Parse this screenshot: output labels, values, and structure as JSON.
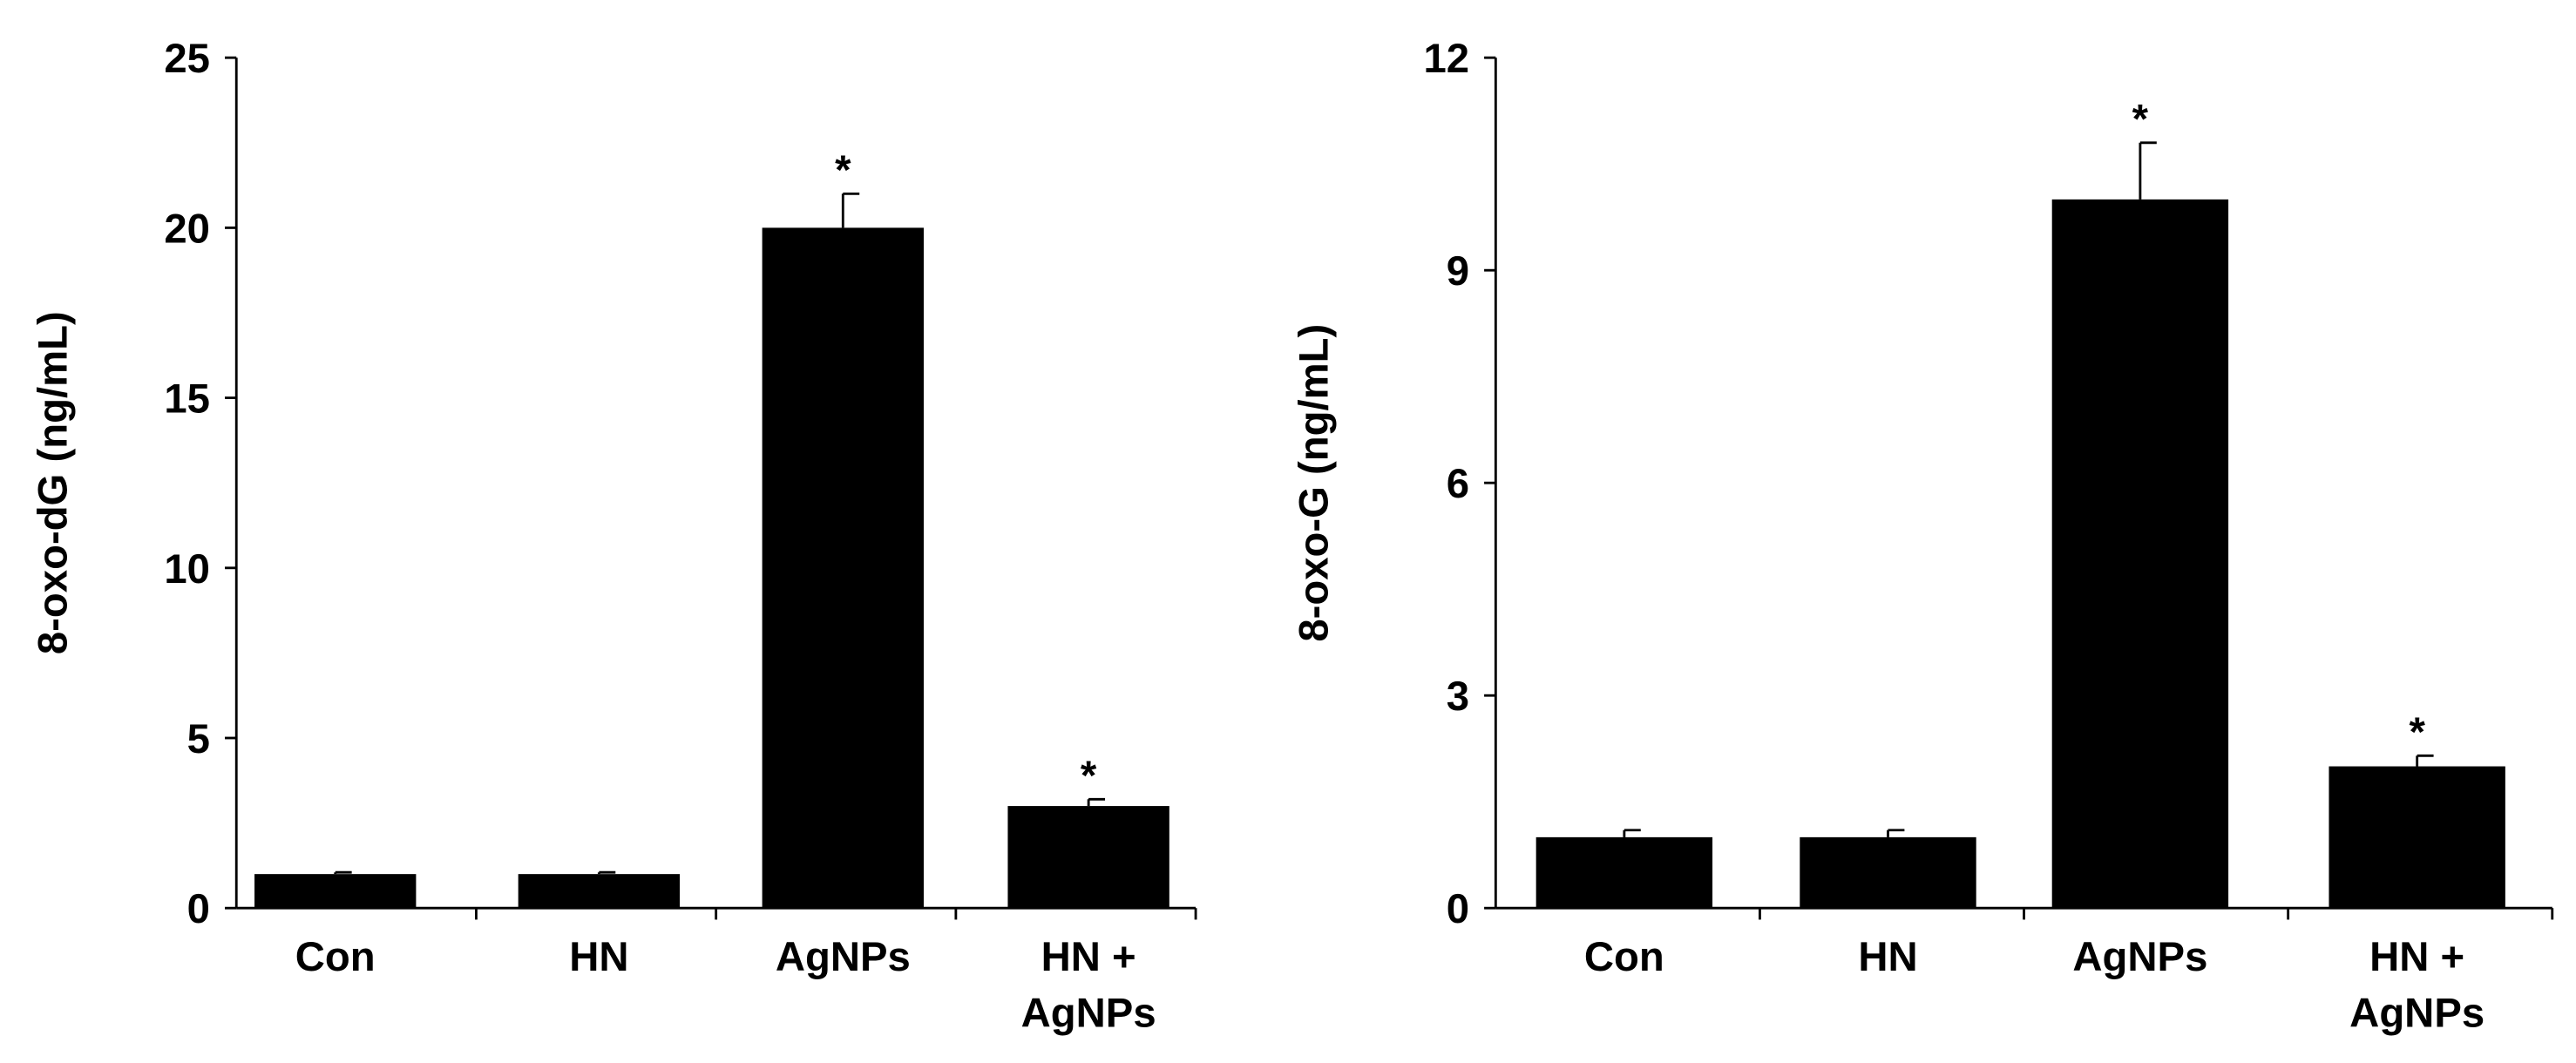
{
  "chart_data": [
    {
      "type": "bar",
      "ylabel": "8-oxo-dG (ng/mL)",
      "categories": [
        "Con",
        "HN",
        "AgNPs",
        "HN +\nAgNPs"
      ],
      "values": [
        1,
        1,
        20,
        3
      ],
      "errors": [
        0.05,
        0.05,
        1.0,
        0.2
      ],
      "significance": [
        null,
        null,
        "*",
        "*"
      ],
      "color": "#000000",
      "ylim": [
        0,
        25
      ],
      "yticks": [
        0,
        5,
        10,
        15,
        20,
        25
      ]
    },
    {
      "type": "bar",
      "ylabel": "8-oxo-G (ng/mL)",
      "categories": [
        "Con",
        "HN",
        "AgNPs",
        "HN +\nAgNPs"
      ],
      "values": [
        1,
        1,
        10,
        2
      ],
      "errors": [
        0.1,
        0.1,
        0.8,
        0.15
      ],
      "significance": [
        null,
        null,
        "*",
        "*"
      ],
      "color": "#000000",
      "ylim": [
        0,
        12
      ],
      "yticks": [
        0,
        3,
        6,
        9,
        12
      ]
    }
  ]
}
